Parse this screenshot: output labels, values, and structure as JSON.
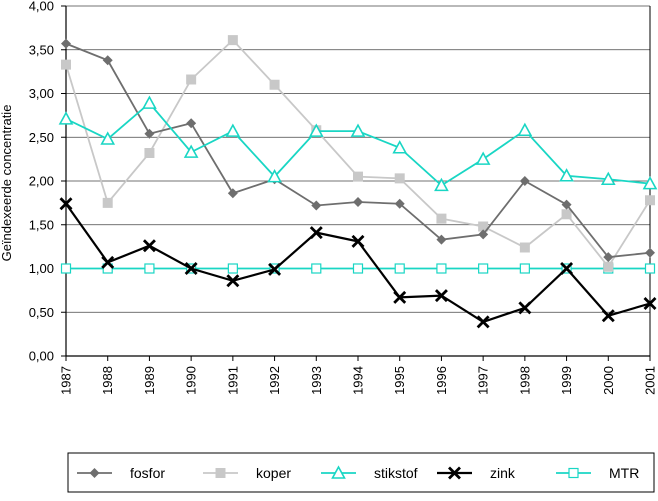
{
  "chart_data": {
    "type": "line",
    "title": "",
    "xlabel": "",
    "ylabel": "Geïndexeerde concentratie",
    "ylim": [
      0,
      4
    ],
    "ytick_step": 0.5,
    "ytick_labels": [
      "0,00",
      "0,50",
      "1,00",
      "1,50",
      "2,00",
      "2,50",
      "3,00",
      "3,50",
      "4,00"
    ],
    "categories": [
      "1987",
      "1988",
      "1989",
      "1990",
      "1991",
      "1992",
      "1993",
      "1994",
      "1995",
      "1996",
      "1997",
      "1998",
      "1999",
      "2000",
      "2001"
    ],
    "grid": "horizontal",
    "legend_position": "bottom",
    "series": [
      {
        "name": "fosfor",
        "color": "#6e6e6e",
        "marker": "diamond",
        "values": [
          3.57,
          3.38,
          2.54,
          2.66,
          1.86,
          2.02,
          1.72,
          1.76,
          1.74,
          1.33,
          1.39,
          2.0,
          1.73,
          1.13,
          1.18
        ]
      },
      {
        "name": "koper",
        "color": "#c8c8c8",
        "marker": "square",
        "values": [
          3.33,
          1.75,
          2.32,
          3.16,
          3.61,
          3.1,
          2.58,
          2.05,
          2.03,
          1.57,
          1.48,
          1.24,
          1.62,
          1.02,
          1.78
        ]
      },
      {
        "name": "stikstof",
        "color": "#19d6c4",
        "marker": "triangle",
        "values": [
          2.71,
          2.48,
          2.89,
          2.33,
          2.57,
          2.05,
          2.57,
          2.57,
          2.38,
          1.95,
          2.25,
          2.58,
          2.06,
          2.02,
          1.97
        ]
      },
      {
        "name": "zink",
        "color": "#000000",
        "marker": "x",
        "values": [
          1.74,
          1.07,
          1.26,
          1.0,
          0.86,
          0.99,
          1.41,
          1.31,
          0.67,
          0.69,
          0.39,
          0.55,
          1.0,
          0.46,
          0.6
        ]
      },
      {
        "name": "MTR",
        "color": "#19d6c4",
        "marker": "open-square",
        "values": [
          1.0,
          1.0,
          1.0,
          1.0,
          1.0,
          1.0,
          1.0,
          1.0,
          1.0,
          1.0,
          1.0,
          1.0,
          1.0,
          1.0,
          1.0
        ]
      }
    ]
  }
}
